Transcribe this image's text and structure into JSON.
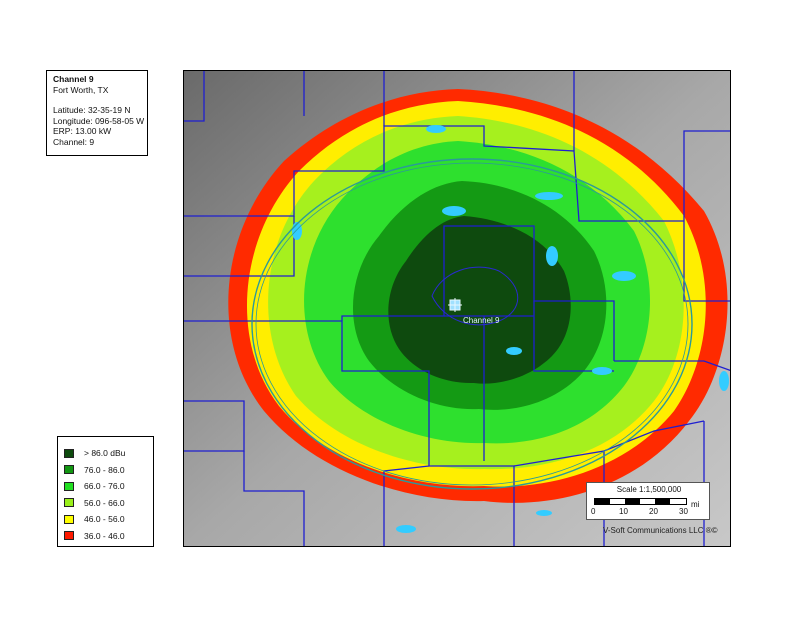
{
  "station": {
    "title": "Channel 9",
    "city": "Fort Worth, TX",
    "latitude": "Latitude: 32-35-19 N",
    "longitude": "Longitude: 096-58-05 W",
    "erp": "ERP: 13.00 kW",
    "channel": "Channel: 9",
    "map_label": "Channel 9"
  },
  "legend": [
    {
      "label": "> 86.0 dBu",
      "color": "#0d4a0d"
    },
    {
      "label": "76.0 - 86.0",
      "color": "#129612"
    },
    {
      "label": "66.0 - 76.0",
      "color": "#22e022"
    },
    {
      "label": "56.0 - 66.0",
      "color": "#9af01a"
    },
    {
      "label": "46.0 - 56.0",
      "color": "#ffff00"
    },
    {
      "label": "36.0 - 46.0",
      "color": "#ff1a00"
    }
  ],
  "scale": {
    "title": "Scale 1:1,500,000",
    "ticks": [
      "0",
      "10",
      "20",
      "30"
    ],
    "unit": "mi"
  },
  "credit": "V-Soft Communications LLC ®©",
  "colors": {
    "county_lines": "#1f1fd0",
    "water": "#33ccff",
    "contour_ring": "#2a9a9a",
    "terrain": "#9a9a9a"
  }
}
